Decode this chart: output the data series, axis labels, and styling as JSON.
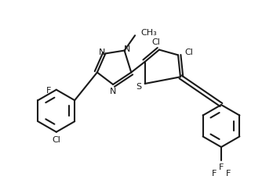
{
  "background_color": "#ffffff",
  "line_color": "#1a1a1a",
  "line_width": 1.5,
  "figsize": [
    3.48,
    2.26
  ],
  "dpi": 100,
  "xlim": [
    0,
    348
  ],
  "ylim": [
    0,
    226
  ]
}
